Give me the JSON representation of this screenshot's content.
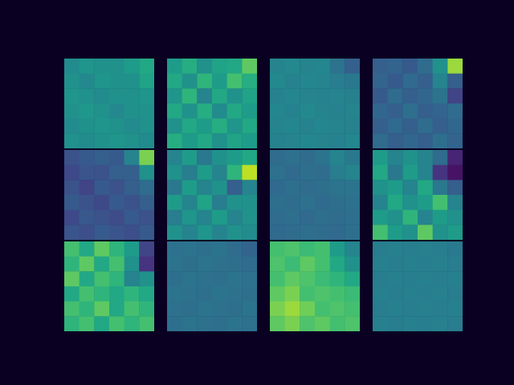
{
  "chart_data": [
    {
      "type": "heatmap",
      "color": "viridis",
      "zlim": [
        0,
        1
      ],
      "tick_labels": false,
      "cells": [
        [
          0.48,
          0.52,
          0.5,
          0.5,
          0.55,
          0.6
        ],
        [
          0.5,
          0.47,
          0.52,
          0.5,
          0.5,
          0.58
        ],
        [
          0.52,
          0.5,
          0.48,
          0.5,
          0.5,
          0.52
        ],
        [
          0.5,
          0.53,
          0.5,
          0.47,
          0.5,
          0.5
        ],
        [
          0.48,
          0.5,
          0.52,
          0.5,
          0.48,
          0.5
        ],
        [
          0.5,
          0.48,
          0.5,
          0.52,
          0.5,
          0.48
        ]
      ]
    },
    {
      "type": "heatmap",
      "color": "viridis",
      "zlim": [
        0,
        1
      ],
      "tick_labels": false,
      "cells": [
        [
          0.55,
          0.62,
          0.5,
          0.58,
          0.6,
          0.75
        ],
        [
          0.6,
          0.5,
          0.65,
          0.55,
          0.7,
          0.62
        ],
        [
          0.52,
          0.65,
          0.45,
          0.6,
          0.5,
          0.58
        ],
        [
          0.6,
          0.5,
          0.62,
          0.48,
          0.6,
          0.55
        ],
        [
          0.5,
          0.6,
          0.55,
          0.62,
          0.52,
          0.6
        ],
        [
          0.62,
          0.55,
          0.6,
          0.5,
          0.58,
          0.55
        ]
      ]
    },
    {
      "type": "heatmap",
      "color": "viridis",
      "zlim": [
        0,
        1
      ],
      "tick_labels": false,
      "cells": [
        [
          0.45,
          0.47,
          0.45,
          0.46,
          0.38,
          0.3
        ],
        [
          0.47,
          0.44,
          0.46,
          0.45,
          0.42,
          0.4
        ],
        [
          0.44,
          0.46,
          0.45,
          0.44,
          0.45,
          0.43
        ],
        [
          0.46,
          0.44,
          0.47,
          0.45,
          0.44,
          0.45
        ],
        [
          0.45,
          0.46,
          0.44,
          0.46,
          0.45,
          0.44
        ],
        [
          0.44,
          0.45,
          0.46,
          0.45,
          0.44,
          0.46
        ]
      ]
    },
    {
      "type": "heatmap",
      "color": "viridis",
      "zlim": [
        0,
        1
      ],
      "tick_labels": false,
      "cells": [
        [
          0.3,
          0.32,
          0.28,
          0.35,
          0.5,
          0.85
        ],
        [
          0.32,
          0.28,
          0.34,
          0.3,
          0.45,
          0.3
        ],
        [
          0.28,
          0.35,
          0.3,
          0.33,
          0.38,
          0.2
        ],
        [
          0.33,
          0.3,
          0.36,
          0.3,
          0.32,
          0.35
        ],
        [
          0.3,
          0.34,
          0.3,
          0.35,
          0.3,
          0.33
        ],
        [
          0.35,
          0.3,
          0.33,
          0.3,
          0.36,
          0.32
        ]
      ]
    },
    {
      "type": "heatmap",
      "color": "viridis",
      "zlim": [
        0,
        1
      ],
      "tick_labels": false,
      "cells": [
        [
          0.25,
          0.28,
          0.3,
          0.28,
          0.45,
          0.8
        ],
        [
          0.22,
          0.26,
          0.25,
          0.3,
          0.3,
          0.5
        ],
        [
          0.25,
          0.2,
          0.28,
          0.25,
          0.3,
          0.35
        ],
        [
          0.28,
          0.25,
          0.22,
          0.28,
          0.25,
          0.3
        ],
        [
          0.22,
          0.27,
          0.25,
          0.23,
          0.28,
          0.25
        ],
        [
          0.26,
          0.24,
          0.28,
          0.26,
          0.24,
          0.28
        ]
      ]
    },
    {
      "type": "heatmap",
      "color": "viridis",
      "zlim": [
        0,
        1
      ],
      "tick_labels": false,
      "cells": [
        [
          0.45,
          0.55,
          0.4,
          0.5,
          0.55,
          0.6
        ],
        [
          0.5,
          0.42,
          0.55,
          0.45,
          0.65,
          0.9
        ],
        [
          0.4,
          0.55,
          0.45,
          0.5,
          0.3,
          0.45
        ],
        [
          0.55,
          0.45,
          0.58,
          0.42,
          0.5,
          0.5
        ],
        [
          0.42,
          0.52,
          0.45,
          0.55,
          0.45,
          0.5
        ],
        [
          0.5,
          0.45,
          0.52,
          0.45,
          0.5,
          0.48
        ]
      ]
    },
    {
      "type": "heatmap",
      "color": "viridis",
      "zlim": [
        0,
        1
      ],
      "tick_labels": false,
      "cells": [
        [
          0.35,
          0.37,
          0.35,
          0.38,
          0.45,
          0.4
        ],
        [
          0.37,
          0.34,
          0.36,
          0.35,
          0.42,
          0.45
        ],
        [
          0.34,
          0.36,
          0.35,
          0.36,
          0.38,
          0.38
        ],
        [
          0.36,
          0.35,
          0.37,
          0.34,
          0.36,
          0.37
        ],
        [
          0.35,
          0.36,
          0.34,
          0.36,
          0.35,
          0.36
        ],
        [
          0.34,
          0.35,
          0.36,
          0.35,
          0.34,
          0.36
        ]
      ]
    },
    {
      "type": "heatmap",
      "color": "viridis",
      "zlim": [
        0,
        1
      ],
      "tick_labels": false,
      "cells": [
        [
          0.55,
          0.45,
          0.5,
          0.45,
          0.35,
          0.1
        ],
        [
          0.6,
          0.4,
          0.55,
          0.45,
          0.15,
          0.05
        ],
        [
          0.5,
          0.55,
          0.45,
          0.6,
          0.4,
          0.3
        ],
        [
          0.45,
          0.6,
          0.5,
          0.55,
          0.7,
          0.45
        ],
        [
          0.55,
          0.5,
          0.65,
          0.45,
          0.55,
          0.5
        ],
        [
          0.7,
          0.55,
          0.5,
          0.75,
          0.5,
          0.55
        ]
      ]
    },
    {
      "type": "heatmap",
      "color": "viridis",
      "zlim": [
        0,
        1
      ],
      "tick_labels": false,
      "cells": [
        [
          0.7,
          0.6,
          0.75,
          0.65,
          0.55,
          0.2
        ],
        [
          0.65,
          0.75,
          0.6,
          0.7,
          0.5,
          0.15
        ],
        [
          0.75,
          0.6,
          0.7,
          0.65,
          0.45,
          0.5
        ],
        [
          0.6,
          0.7,
          0.65,
          0.6,
          0.65,
          0.6
        ],
        [
          0.7,
          0.65,
          0.75,
          0.6,
          0.7,
          0.65
        ],
        [
          0.65,
          0.7,
          0.6,
          0.7,
          0.65,
          0.7
        ]
      ]
    },
    {
      "type": "heatmap",
      "color": "viridis",
      "zlim": [
        0,
        1
      ],
      "tick_labels": false,
      "cells": [
        [
          0.37,
          0.38,
          0.36,
          0.38,
          0.35,
          0.32
        ],
        [
          0.38,
          0.36,
          0.38,
          0.37,
          0.36,
          0.35
        ],
        [
          0.36,
          0.38,
          0.37,
          0.36,
          0.38,
          0.37
        ],
        [
          0.38,
          0.37,
          0.36,
          0.38,
          0.37,
          0.36
        ],
        [
          0.37,
          0.36,
          0.38,
          0.37,
          0.36,
          0.38
        ],
        [
          0.36,
          0.38,
          0.37,
          0.36,
          0.38,
          0.37
        ]
      ]
    },
    {
      "type": "heatmap",
      "color": "viridis",
      "zlim": [
        0,
        1
      ],
      "tick_labels": false,
      "cells": [
        [
          0.7,
          0.72,
          0.68,
          0.7,
          0.55,
          0.45
        ],
        [
          0.72,
          0.68,
          0.75,
          0.7,
          0.6,
          0.5
        ],
        [
          0.7,
          0.75,
          0.72,
          0.68,
          0.65,
          0.6
        ],
        [
          0.75,
          0.8,
          0.7,
          0.72,
          0.7,
          0.68
        ],
        [
          0.8,
          0.85,
          0.78,
          0.7,
          0.72,
          0.7
        ],
        [
          0.75,
          0.8,
          0.72,
          0.75,
          0.7,
          0.72
        ]
      ]
    },
    {
      "type": "heatmap",
      "color": "viridis",
      "zlim": [
        0,
        1
      ],
      "tick_labels": false,
      "cells": [
        [
          0.42,
          0.43,
          0.42,
          0.43,
          0.42,
          0.41
        ],
        [
          0.43,
          0.42,
          0.43,
          0.42,
          0.43,
          0.42
        ],
        [
          0.42,
          0.43,
          0.42,
          0.43,
          0.42,
          0.43
        ],
        [
          0.43,
          0.42,
          0.43,
          0.42,
          0.43,
          0.42
        ],
        [
          0.42,
          0.43,
          0.42,
          0.43,
          0.42,
          0.43
        ],
        [
          0.43,
          0.42,
          0.43,
          0.42,
          0.43,
          0.42
        ]
      ]
    }
  ]
}
